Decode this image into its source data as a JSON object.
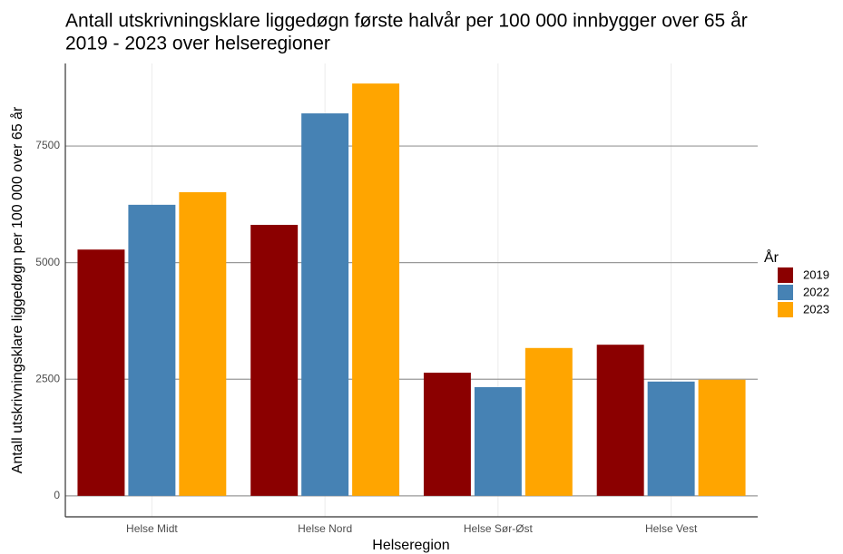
{
  "chart_data": {
    "type": "bar",
    "title": [
      "Antall utskrivningsklare liggedøgn første halvår per 100 000 innbygger over 65 år",
      "2019 - 2023 over helseregioner"
    ],
    "x_label": "Helseregion",
    "y_label": "Antall utskrivningsklare liggedøgn per 100 000 over 65 år",
    "legend_title": "År",
    "categories": [
      "Helse Midt",
      "Helse Nord",
      "Helse Sør-Øst",
      "Helse Vest"
    ],
    "series": [
      {
        "name": "2019",
        "color": "#8b0000",
        "values": [
          5280,
          5810,
          2640,
          3240
        ]
      },
      {
        "name": "2022",
        "color": "#4682b4",
        "values": [
          6240,
          8200,
          2330,
          2450
        ]
      },
      {
        "name": "2023",
        "color": "#ffa500",
        "values": [
          6510,
          8840,
          3170,
          2490
        ]
      }
    ],
    "ylim": [
      -450,
      9270
    ],
    "yticks": [
      0,
      2500,
      5000,
      7500
    ],
    "grid": true,
    "legend": "right"
  }
}
